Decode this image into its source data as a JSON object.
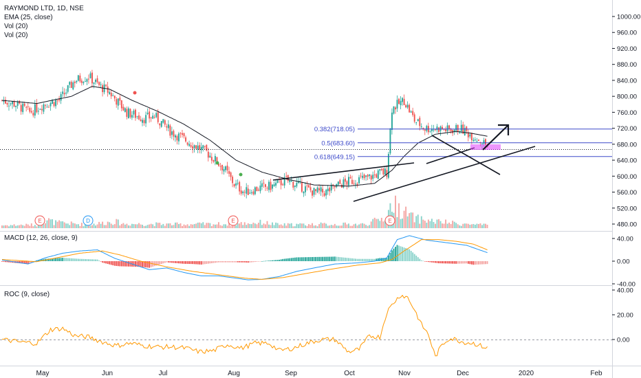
{
  "header": {
    "symbol": "RAYMOND LTD, 1D, NSE",
    "ema": "EMA (25, close)",
    "vol1": "Vol (20)",
    "vol2": "Vol (20)"
  },
  "panes": {
    "macd_title": "MACD (12, 26, close, 9)",
    "roc_title": "ROC (9, close)"
  },
  "colors": {
    "up": "#26a69a",
    "down": "#ef5350",
    "up_vol": "#8bd3cb",
    "down_vol": "#f4a6a4",
    "ema": "#131722",
    "fib": "#3b48c9",
    "macd_line": "#2196f3",
    "signal_line": "#ff9800",
    "roc": "#ff9800",
    "highlight": "#e040fb"
  },
  "chart_data": {
    "type": "candlestick",
    "price_axis": {
      "ticks": [
        "1000.00",
        "960.00",
        "920.00",
        "880.00",
        "840.00",
        "800.00",
        "760.00",
        "720.00",
        "680.00",
        "640.00",
        "600.00",
        "560.00",
        "520.00",
        "480.00"
      ]
    },
    "macd_axis": {
      "ticks": [
        "40.00",
        "0.00",
        "-40.00"
      ]
    },
    "roc_axis": {
      "ticks": [
        "40.00",
        "20.00",
        "0.00"
      ]
    },
    "x_ticks": [
      "May",
      "Jun",
      "Jul",
      "Aug",
      "Sep",
      "Oct",
      "Nov",
      "Dec",
      "2020",
      "Feb"
    ],
    "fib_levels": [
      {
        "label": "0.382(718.05)",
        "value": 718.05
      },
      {
        "label": "0.5(683.60)",
        "value": 683.6
      },
      {
        "label": "0.618(649.15)",
        "value": 649.15
      }
    ],
    "events": [
      "E",
      "D",
      "E",
      "E"
    ],
    "price_anchors": [
      [
        0,
        790
      ],
      [
        8,
        780
      ],
      [
        16,
        760
      ],
      [
        24,
        780
      ],
      [
        33,
        790
      ],
      [
        42,
        840
      ],
      [
        50,
        850
      ],
      [
        55,
        830
      ],
      [
        62,
        810
      ],
      [
        72,
        760
      ],
      [
        82,
        745
      ],
      [
        88,
        750
      ],
      [
        98,
        710
      ],
      [
        110,
        680
      ],
      [
        118,
        660
      ],
      [
        128,
        620
      ],
      [
        134,
        580
      ],
      [
        140,
        560
      ],
      [
        148,
        570
      ],
      [
        156,
        575
      ],
      [
        164,
        590
      ],
      [
        172,
        575
      ],
      [
        180,
        560
      ],
      [
        187,
        560
      ],
      [
        195,
        580
      ],
      [
        203,
        590
      ],
      [
        211,
        595
      ],
      [
        218,
        608
      ],
      [
        222,
        610
      ],
      [
        225,
        770
      ],
      [
        232,
        790
      ],
      [
        238,
        740
      ],
      [
        244,
        720
      ],
      [
        252,
        720
      ],
      [
        258,
        715
      ],
      [
        264,
        720
      ],
      [
        270,
        705
      ],
      [
        276,
        690
      ],
      [
        280,
        675
      ]
    ],
    "ema_anchors": [
      [
        0,
        790
      ],
      [
        20,
        782
      ],
      [
        40,
        800
      ],
      [
        52,
        825
      ],
      [
        62,
        818
      ],
      [
        75,
        790
      ],
      [
        90,
        762
      ],
      [
        105,
        730
      ],
      [
        120,
        690
      ],
      [
        135,
        640
      ],
      [
        150,
        610
      ],
      [
        165,
        592
      ],
      [
        180,
        578
      ],
      [
        200,
        575
      ],
      [
        215,
        582
      ],
      [
        225,
        615
      ],
      [
        232,
        650
      ],
      [
        240,
        683
      ],
      [
        250,
        705
      ],
      [
        262,
        712
      ],
      [
        270,
        708
      ],
      [
        280,
        700
      ]
    ],
    "macd_anchors": [
      [
        0,
        2
      ],
      [
        15,
        -5
      ],
      [
        25,
        6
      ],
      [
        35,
        14
      ],
      [
        45,
        18
      ],
      [
        55,
        20
      ],
      [
        65,
        5
      ],
      [
        75,
        -5
      ],
      [
        85,
        -15
      ],
      [
        95,
        -12
      ],
      [
        105,
        -20
      ],
      [
        115,
        -26
      ],
      [
        125,
        -26
      ],
      [
        135,
        -30
      ],
      [
        142,
        -33
      ],
      [
        150,
        -32
      ],
      [
        160,
        -27
      ],
      [
        170,
        -18
      ],
      [
        180,
        -12
      ],
      [
        192,
        -5
      ],
      [
        205,
        -3
      ],
      [
        215,
        0
      ],
      [
        222,
        6
      ],
      [
        228,
        38
      ],
      [
        235,
        45
      ],
      [
        245,
        37
      ],
      [
        258,
        32
      ],
      [
        268,
        28
      ],
      [
        280,
        15
      ]
    ],
    "signal_anchors": [
      [
        0,
        3
      ],
      [
        20,
        -1
      ],
      [
        30,
        5
      ],
      [
        45,
        14
      ],
      [
        58,
        18
      ],
      [
        68,
        11
      ],
      [
        80,
        0
      ],
      [
        95,
        -10
      ],
      [
        110,
        -18
      ],
      [
        125,
        -24
      ],
      [
        140,
        -30
      ],
      [
        150,
        -32
      ],
      [
        162,
        -29
      ],
      [
        175,
        -22
      ],
      [
        190,
        -14
      ],
      [
        205,
        -7
      ],
      [
        218,
        -3
      ],
      [
        225,
        3
      ],
      [
        232,
        18
      ],
      [
        242,
        38
      ],
      [
        252,
        38
      ],
      [
        262,
        35
      ],
      [
        272,
        30
      ],
      [
        280,
        20
      ]
    ],
    "roc_anchors": [
      [
        0,
        0
      ],
      [
        10,
        -2
      ],
      [
        20,
        -3
      ],
      [
        28,
        8
      ],
      [
        35,
        9
      ],
      [
        42,
        3
      ],
      [
        50,
        2
      ],
      [
        58,
        -2
      ],
      [
        66,
        -5
      ],
      [
        74,
        -3
      ],
      [
        82,
        -5
      ],
      [
        90,
        -6
      ],
      [
        98,
        -6
      ],
      [
        106,
        -7
      ],
      [
        114,
        -10
      ],
      [
        122,
        -9
      ],
      [
        130,
        -4
      ],
      [
        138,
        -7
      ],
      [
        146,
        -3
      ],
      [
        154,
        -3
      ],
      [
        160,
        -9
      ],
      [
        168,
        -7
      ],
      [
        176,
        -3
      ],
      [
        184,
        0
      ],
      [
        192,
        0
      ],
      [
        200,
        -10
      ],
      [
        206,
        -8
      ],
      [
        212,
        3
      ],
      [
        218,
        2
      ],
      [
        222,
        22
      ],
      [
        226,
        30
      ],
      [
        230,
        36
      ],
      [
        234,
        34
      ],
      [
        238,
        24
      ],
      [
        242,
        12
      ],
      [
        246,
        4
      ],
      [
        250,
        -14
      ],
      [
        254,
        -4
      ],
      [
        258,
        1
      ],
      [
        262,
        0
      ],
      [
        266,
        -2
      ],
      [
        272,
        -3
      ],
      [
        280,
        -7
      ]
    ],
    "vol_anchors": [
      [
        0,
        0.3
      ],
      [
        20,
        0.35
      ],
      [
        26,
        0.9
      ],
      [
        30,
        0.6
      ],
      [
        50,
        0.35
      ],
      [
        65,
        0.7
      ],
      [
        70,
        0.45
      ],
      [
        100,
        0.4
      ],
      [
        135,
        0.45
      ],
      [
        150,
        0.6
      ],
      [
        160,
        0.35
      ],
      [
        180,
        0.4
      ],
      [
        210,
        0.4
      ],
      [
        222,
        1.2
      ],
      [
        225,
        2.6
      ],
      [
        230,
        1.9
      ],
      [
        238,
        1.0
      ],
      [
        250,
        0.7
      ],
      [
        265,
        0.45
      ],
      [
        280,
        0.3
      ]
    ]
  }
}
